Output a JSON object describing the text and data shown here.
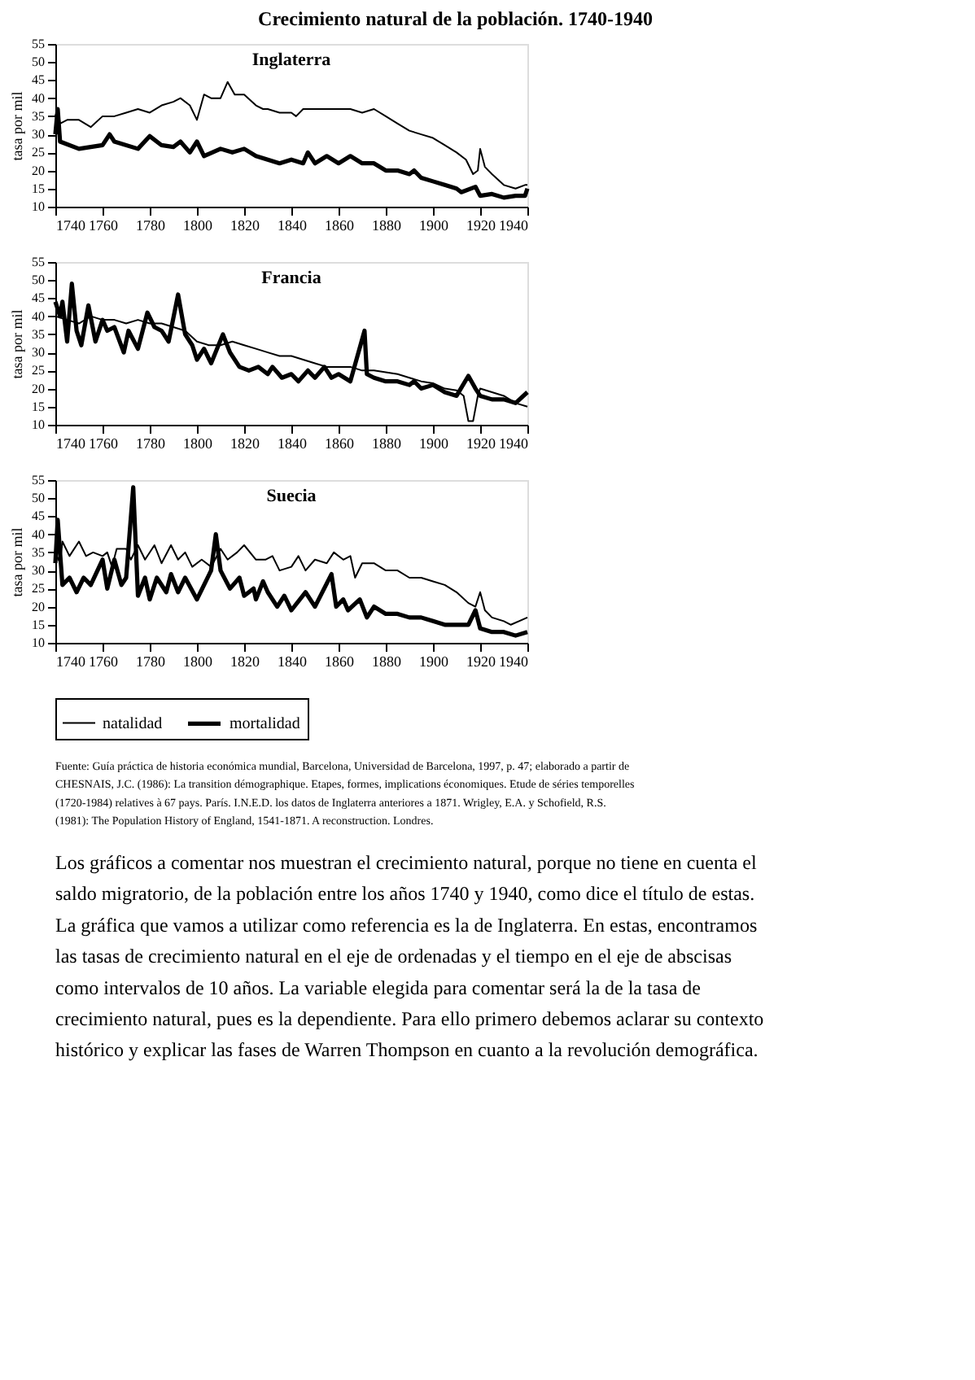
{
  "chart_data": [
    {
      "type": "line",
      "title": "Crecimiento natural de la población. 1740-1940",
      "subtitle": "Inglaterra",
      "ylabel": "tasa por mil",
      "xlim": [
        1740,
        1940
      ],
      "xticks": [
        1740,
        1760,
        1780,
        1800,
        1820,
        1840,
        1860,
        1880,
        1900,
        1920,
        1940
      ],
      "ylim": [
        10,
        55
      ],
      "yticks": [
        10,
        15,
        20,
        25,
        30,
        35,
        40,
        45,
        50,
        55
      ],
      "grid": false,
      "series": [
        {
          "color": "#000000",
          "x": [
            1740,
            1741,
            1742,
            1745,
            1750,
            1755,
            1760,
            1765,
            1770,
            1775,
            1780,
            1785,
            1790,
            1793,
            1797,
            1800,
            1803,
            1806,
            1810,
            1813,
            1816,
            1820,
            1825,
            1828,
            1830,
            1835,
            1840,
            1842,
            1845,
            1850,
            1855,
            1860,
            1865,
            1870,
            1875,
            1880,
            1885,
            1890,
            1895,
            1900,
            1905,
            1910,
            1914,
            1917,
            1919,
            1920,
            1922,
            1925,
            1930,
            1935,
            1939,
            1940
          ],
          "values": [
            35,
            37,
            33,
            34,
            34,
            32,
            35,
            35,
            36,
            37,
            36,
            38,
            39,
            40,
            38,
            34,
            41,
            40,
            40,
            44.5,
            41,
            41,
            38,
            37,
            37,
            36,
            36,
            35,
            37,
            37,
            37,
            37,
            37,
            36,
            37,
            35,
            33,
            31,
            30,
            29,
            27,
            25,
            23,
            19,
            20,
            26,
            21,
            19,
            16,
            15,
            16,
            16
          ]
        },
        {
          "color": "#000000",
          "x": [
            1740,
            1741,
            1742,
            1750,
            1760,
            1763,
            1765,
            1775,
            1780,
            1785,
            1790,
            1793,
            1797,
            1800,
            1803,
            1810,
            1815,
            1820,
            1825,
            1830,
            1835,
            1840,
            1845,
            1847,
            1850,
            1855,
            1860,
            1865,
            1870,
            1875,
            1880,
            1885,
            1890,
            1892,
            1895,
            1900,
            1905,
            1910,
            1912,
            1918,
            1920,
            1925,
            1930,
            1935,
            1939,
            1940
          ],
          "values": [
            30,
            37,
            28,
            26,
            27,
            30,
            28,
            26,
            29.5,
            27,
            26.5,
            28,
            25,
            28,
            24,
            26,
            25,
            26,
            24,
            23,
            22,
            23,
            22,
            25,
            22,
            24,
            22,
            24,
            22,
            22,
            20,
            20,
            19,
            20,
            18,
            17,
            16,
            15,
            14,
            15.5,
            13,
            13.5,
            12.5,
            13,
            13,
            15
          ]
        }
      ]
    },
    {
      "type": "line",
      "subtitle": "Francia",
      "ylabel": "tasa por mil",
      "xlim": [
        1740,
        1940
      ],
      "xticks": [
        1740,
        1760,
        1780,
        1800,
        1820,
        1840,
        1860,
        1880,
        1900,
        1920,
        1940
      ],
      "ylim": [
        10,
        55
      ],
      "yticks": [
        10,
        15,
        20,
        25,
        30,
        35,
        40,
        45,
        50,
        55
      ],
      "grid": false,
      "series": [
        {
          "color": "#000000",
          "x": [
            1740,
            1745,
            1750,
            1755,
            1760,
            1765,
            1770,
            1775,
            1780,
            1785,
            1790,
            1795,
            1800,
            1805,
            1810,
            1815,
            1820,
            1825,
            1830,
            1835,
            1840,
            1845,
            1850,
            1855,
            1860,
            1865,
            1870,
            1875,
            1880,
            1885,
            1890,
            1895,
            1900,
            1905,
            1910,
            1913,
            1915,
            1917,
            1919,
            1920,
            1925,
            1930,
            1935,
            1940
          ],
          "values": [
            40,
            39,
            38,
            40,
            39,
            39,
            38,
            39,
            38,
            38,
            37,
            36,
            33,
            32,
            32,
            33,
            32,
            31,
            30,
            29,
            29,
            28,
            27,
            26,
            26,
            26,
            25,
            25,
            24.5,
            24,
            23,
            22,
            21.5,
            20,
            19.5,
            18,
            11,
            11,
            18,
            20,
            19,
            18,
            16,
            15
          ]
        },
        {
          "color": "#000000",
          "x": [
            1740,
            1742,
            1743,
            1745,
            1747,
            1749,
            1751,
            1754,
            1757,
            1760,
            1762,
            1765,
            1769,
            1771,
            1775,
            1779,
            1782,
            1785,
            1788,
            1792,
            1795,
            1798,
            1800,
            1803,
            1806,
            1811,
            1814,
            1818,
            1822,
            1826,
            1830,
            1832,
            1836,
            1840,
            1843,
            1847,
            1850,
            1854,
            1857,
            1860,
            1865,
            1871,
            1872,
            1875,
            1880,
            1885,
            1890,
            1892,
            1895,
            1900,
            1905,
            1910,
            1915,
            1918,
            1920,
            1925,
            1930,
            1935,
            1940
          ],
          "values": [
            44,
            40,
            44,
            33,
            49,
            36,
            32,
            43,
            33,
            39,
            36,
            37,
            30,
            36,
            31,
            41,
            37,
            36,
            33,
            46,
            35,
            32,
            28,
            31,
            27,
            35,
            30,
            26,
            25,
            26,
            24,
            26,
            23,
            24,
            22,
            25,
            23,
            26,
            23,
            24,
            22,
            36,
            24,
            23,
            22,
            22,
            21,
            22,
            20,
            21,
            19,
            18,
            23.5,
            20,
            18,
            17,
            17,
            16,
            19
          ]
        }
      ]
    },
    {
      "type": "line",
      "subtitle": "Suecia",
      "ylabel": "tasa por mil",
      "xlim": [
        1740,
        1940
      ],
      "xticks": [
        1740,
        1760,
        1780,
        1800,
        1820,
        1840,
        1860,
        1880,
        1900,
        1920,
        1940
      ],
      "ylim": [
        10,
        55
      ],
      "yticks": [
        10,
        15,
        20,
        25,
        30,
        35,
        40,
        45,
        50,
        55
      ],
      "grid": false,
      "legend": "bottom",
      "series": [
        {
          "name": "natalidad",
          "color": "#000000",
          "x": [
            1740,
            1742,
            1743,
            1746,
            1750,
            1753,
            1756,
            1760,
            1762,
            1764,
            1766,
            1770,
            1772,
            1775,
            1778,
            1782,
            1785,
            1789,
            1792,
            1795,
            1798,
            1802,
            1806,
            1810,
            1813,
            1817,
            1820,
            1825,
            1829,
            1832,
            1835,
            1840,
            1843,
            1846,
            1850,
            1855,
            1858,
            1862,
            1865,
            1867,
            1870,
            1875,
            1880,
            1885,
            1890,
            1895,
            1900,
            1905,
            1910,
            1915,
            1918,
            1920,
            1922,
            1925,
            1930,
            1933,
            1940
          ],
          "values": [
            35,
            32,
            38,
            34,
            38,
            34,
            35,
            34,
            35,
            31,
            36,
            36,
            33,
            37,
            33,
            37,
            32,
            37,
            33,
            35,
            31,
            33,
            31,
            36,
            33,
            35,
            37,
            33,
            33,
            34,
            30,
            31,
            34,
            30,
            33,
            32,
            35,
            33,
            34,
            28,
            32,
            32,
            30,
            30,
            28,
            28,
            27,
            26,
            24,
            21,
            20,
            24,
            19,
            17,
            16,
            15,
            17
          ]
        },
        {
          "name": "mortalidad",
          "color": "#000000",
          "x": [
            1740,
            1741,
            1743,
            1746,
            1749,
            1752,
            1755,
            1760,
            1762,
            1765,
            1768,
            1770,
            1773,
            1775,
            1778,
            1780,
            1783,
            1787,
            1789,
            1792,
            1795,
            1800,
            1806,
            1808,
            1810,
            1814,
            1818,
            1820,
            1824,
            1825,
            1828,
            1830,
            1834,
            1837,
            1840,
            1846,
            1850,
            1857,
            1859,
            1862,
            1864,
            1869,
            1872,
            1875,
            1880,
            1885,
            1890,
            1895,
            1900,
            1905,
            1910,
            1915,
            1918,
            1920,
            1925,
            1930,
            1935,
            1940
          ],
          "values": [
            32,
            44,
            26,
            28,
            24,
            28,
            26,
            33,
            25,
            33,
            26,
            28,
            53,
            23,
            28,
            22,
            28,
            24,
            29,
            24,
            28,
            22,
            30,
            40,
            30,
            25,
            28,
            23,
            25,
            22,
            27,
            24,
            20,
            23,
            19,
            24,
            20,
            29,
            20,
            22,
            19,
            22,
            17,
            20,
            18,
            18,
            17,
            17,
            16,
            15,
            15,
            15,
            19,
            14,
            13,
            13,
            12,
            13
          ]
        }
      ],
      "annotations": [
        "Fuente: Guía práctica de historia económica mundial, Barcelona, Universidad de Barcelona, 1997, p. 47; elaborado a partir de CHESNAIS, J.C. (1986): La transition démographique. Etapes, formes, implications économiques. Etude de séries temporelles (1720-1984) relatives à 67 pays. París. I.N.E.D. los datos de Inglaterra anteriores a 1871. Wrigley, E.A. y Schofield, R.S. (1981): The Population History of England, 1541-1871. A reconstruction. Londres.",
        "Los gráficos a comentar nos muestran el crecimiento natural, porque no tiene en cuenta el saldo migratorio, de la población entre los años 1740 y 1940, como dice el título de estas. La gráfica que vamos a utilizar como referencia es la de Inglaterra. En estas, encontramos las tasas de crecimiento natural en el eje de ordenadas y el tiempo en el eje de abscisas como intervalos de 10 años. La variable elegida para comentar será la de la tasa de crecimiento natural, pues es la dependiente. Para ello primero debemos aclarar su contexto histórico y explicar las fases de Warren Thompson en cuanto a la revolución demográfica."
      ]
    }
  ]
}
